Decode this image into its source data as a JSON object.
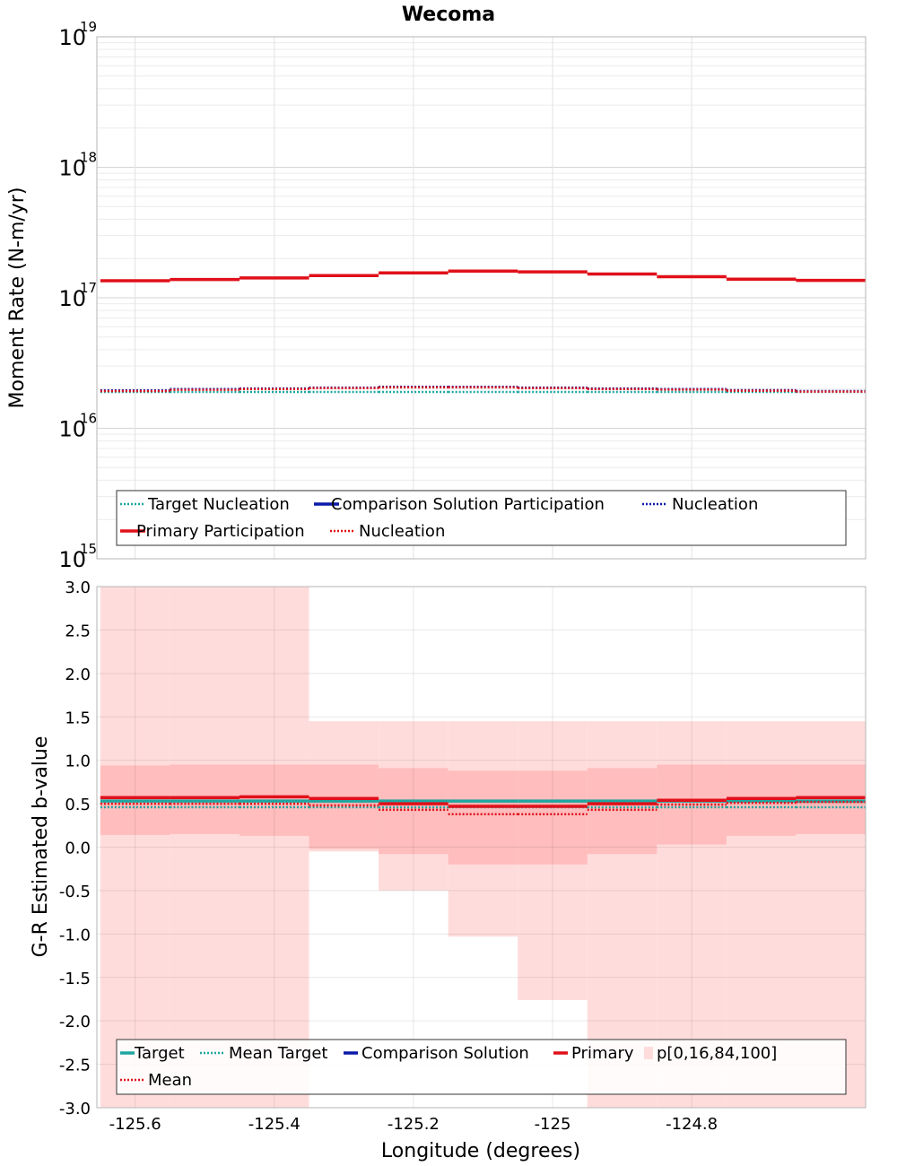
{
  "title": "Wecoma",
  "colors": {
    "target": "#1fa6a0",
    "comparison": "#0a1aa8",
    "primary": "#e0101a",
    "band_outer": "#ffdcdc",
    "band_inner": "#ffbdbd"
  },
  "chart_data": [
    {
      "type": "line",
      "id": "moment_rate",
      "ylabel": "Moment Rate (N-m/yr)",
      "y_scale": "log",
      "ylim": [
        1000000000000000.0,
        1e+19
      ],
      "y_ticks": [
        {
          "base": "10",
          "exp": "15"
        },
        {
          "base": "10",
          "exp": "16"
        },
        {
          "base": "10",
          "exp": "17"
        },
        {
          "base": "10",
          "exp": "18"
        },
        {
          "base": "10",
          "exp": "19"
        }
      ],
      "grid": true,
      "legend_placement": "bottom",
      "x_edges": [
        -125.65,
        -125.55,
        -125.45,
        -125.35,
        -125.25,
        -125.15,
        -125.05,
        -124.95,
        -124.85,
        -124.75,
        -124.65,
        -124.55
      ],
      "series": [
        {
          "name": "Target Nucleation",
          "style": "dotted",
          "color_key": "target",
          "values": [
            1.9e+16,
            1.9e+16,
            1.9e+16,
            1.9e+16,
            1.9e+16,
            1.9e+16,
            1.9e+16,
            1.9e+16,
            1.9e+16,
            1.9e+16,
            1.9e+16
          ]
        },
        {
          "name": "Comparison Solution Participation",
          "style": "solid",
          "color_key": "comparison",
          "values": []
        },
        {
          "name": "Nucleation",
          "style": "dotted",
          "color_key": "comparison",
          "values": [
            1.95e+16,
            2e+16,
            2.02e+16,
            2.05e+16,
            2.08e+16,
            2.08e+16,
            2.05e+16,
            2.02e+16,
            2e+16,
            1.96e+16,
            1.93e+16
          ]
        },
        {
          "name": "Primary Participation",
          "style": "solid",
          "color_key": "primary",
          "values": [
            1.35e+17,
            1.38e+17,
            1.42e+17,
            1.48e+17,
            1.55e+17,
            1.6e+17,
            1.58e+17,
            1.52e+17,
            1.45e+17,
            1.39e+17,
            1.36e+17
          ]
        },
        {
          "name": "Nucleation",
          "style": "dotted",
          "color_key": "primary",
          "values": [
            1.93e+16,
            1.97e+16,
            2e+16,
            2.03e+16,
            2.06e+16,
            2.06e+16,
            2.03e+16,
            2e+16,
            1.98e+16,
            1.94e+16,
            1.91e+16
          ]
        }
      ],
      "legend": [
        {
          "label": "Target Nucleation",
          "style": "dotted",
          "color_key": "target"
        },
        {
          "label": "Comparison Solution Participation",
          "style": "solid",
          "color_key": "comparison"
        },
        {
          "label": "Nucleation",
          "style": "dotted",
          "color_key": "comparison"
        },
        {
          "label": "Primary Participation",
          "style": "solid",
          "color_key": "primary"
        },
        {
          "label": "Nucleation",
          "style": "dotted",
          "color_key": "primary"
        }
      ]
    },
    {
      "type": "line",
      "id": "b_value",
      "ylabel": "G-R Estimated b-value",
      "xlabel": "Longitude (degrees)",
      "ylim": [
        -3.0,
        3.0
      ],
      "y_ticks": [
        "-3.0",
        "-2.5",
        "-2.0",
        "-1.5",
        "-1.0",
        "-0.5",
        "0.0",
        "0.5",
        "1.0",
        "1.5",
        "2.0",
        "2.5",
        "3.0"
      ],
      "xlim": [
        -125.655,
        -124.55
      ],
      "x_ticks": [
        "-125.6",
        "-125.4",
        "-125.2",
        "-125",
        "-124.8"
      ],
      "grid": true,
      "legend_placement": "bottom",
      "x_edges": [
        -125.65,
        -125.55,
        -125.45,
        -125.35,
        -125.25,
        -125.15,
        -125.05,
        -124.95,
        -124.85,
        -124.75,
        -124.65,
        -124.55
      ],
      "band_outer": {
        "lower": [
          -5,
          -5,
          -5,
          -0.05,
          -0.5,
          -1.03,
          -1.76,
          -5,
          -5,
          -5,
          -5
        ],
        "upper": [
          3.05,
          3.05,
          3.05,
          1.45,
          1.45,
          1.45,
          1.45,
          1.45,
          1.45,
          1.45,
          1.45
        ]
      },
      "band_inner": {
        "lower": [
          0.14,
          0.15,
          0.13,
          -0.02,
          -0.08,
          -0.2,
          -0.2,
          -0.08,
          0.03,
          0.13,
          0.15
        ],
        "upper": [
          0.94,
          0.95,
          0.95,
          0.95,
          0.91,
          0.88,
          0.88,
          0.91,
          0.95,
          0.95,
          0.95
        ]
      },
      "series": [
        {
          "name": "Target",
          "style": "solid",
          "color_key": "target",
          "values": [
            0.53,
            0.53,
            0.53,
            0.53,
            0.53,
            0.53,
            0.53,
            0.53,
            0.53,
            0.53,
            0.53
          ]
        },
        {
          "name": "Mean Target",
          "style": "dotted",
          "color_key": "target",
          "values": [
            0.46,
            0.46,
            0.46,
            0.46,
            0.46,
            0.46,
            0.46,
            0.46,
            0.46,
            0.46,
            0.46
          ]
        },
        {
          "name": "Comparison Solution",
          "style": "solid",
          "color_key": "comparison",
          "values": []
        },
        {
          "name": "Primary",
          "style": "solid",
          "color_key": "primary",
          "values": [
            0.57,
            0.57,
            0.58,
            0.56,
            0.5,
            0.47,
            0.47,
            0.5,
            0.54,
            0.56,
            0.57
          ]
        },
        {
          "name": "Mean",
          "style": "dotted",
          "color_key": "primary",
          "values": [
            0.5,
            0.5,
            0.5,
            0.48,
            0.43,
            0.38,
            0.38,
            0.43,
            0.49,
            0.51,
            0.52
          ]
        }
      ],
      "legend": [
        {
          "label": "Target",
          "style": "solid",
          "color_key": "target"
        },
        {
          "label": "Mean Target",
          "style": "dotted",
          "color_key": "target"
        },
        {
          "label": "Comparison Solution",
          "style": "solid",
          "color_key": "comparison"
        },
        {
          "label": "Primary",
          "style": "solid",
          "color_key": "primary"
        },
        {
          "label": "p[0,16,84,100]",
          "style": "box",
          "color_key": "band_outer"
        },
        {
          "label": "Mean",
          "style": "dotted",
          "color_key": "primary"
        }
      ]
    }
  ]
}
